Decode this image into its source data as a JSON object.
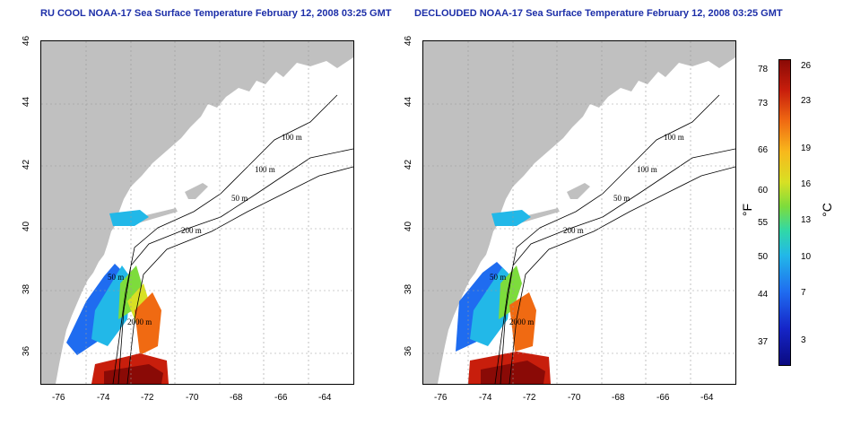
{
  "titles": {
    "left": "RU COOL NOAA-17 Sea Surface Temperature February 12, 2008 03:25 GMT",
    "right": "DECLOUDED NOAA-17 Sea Surface Temperature February 12, 2008 03:25 GMT"
  },
  "map": {
    "lon_range": [
      -77,
      -63
    ],
    "lat_range": [
      35,
      46
    ],
    "x_ticks": [
      "-76",
      "-74",
      "-72",
      "-70",
      "-68",
      "-66",
      "-64"
    ],
    "y_ticks": [
      "36",
      "38",
      "40",
      "42",
      "44",
      "46"
    ],
    "contour_labels": [
      "100 m",
      "100 m",
      "50 m",
      "200 m",
      "50 m",
      "2000 m"
    ],
    "land_color": "#c0c0c0",
    "grid": true
  },
  "colorbar": {
    "fahrenheit_ticks": [
      "78",
      "73",
      "66",
      "60",
      "55",
      "50",
      "44",
      "37"
    ],
    "celsius_ticks": [
      "26",
      "23",
      "19",
      "16",
      "13",
      "10",
      "7",
      "3"
    ],
    "unit_f": "°F",
    "unit_c": "°C",
    "colors": [
      "#0a0a80",
      "#1525c8",
      "#1f6cf0",
      "#22b8e8",
      "#30d8a8",
      "#7ddc3c",
      "#d8e024",
      "#f8b81c",
      "#f06a12",
      "#c81e0c",
      "#8a0a06"
    ]
  }
}
